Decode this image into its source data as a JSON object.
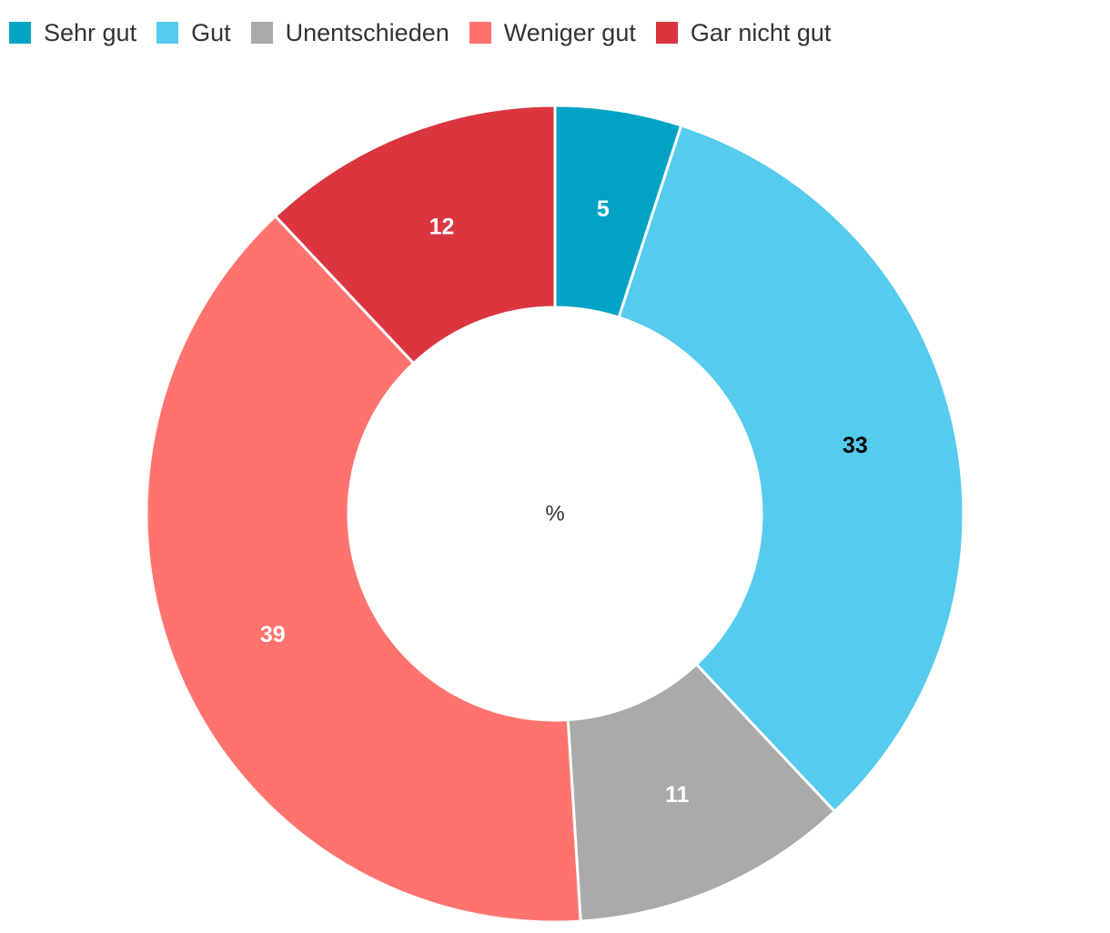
{
  "chart_data": {
    "type": "pie",
    "variant": "donut",
    "categories": [
      "Sehr gut",
      "Gut",
      "Unentschieden",
      "Weniger gut",
      "Gar nicht gut"
    ],
    "values": [
      5,
      33,
      11,
      39,
      12
    ],
    "colors": [
      "#00a3c4",
      "#55cbed",
      "#aaaaaa",
      "#ff736e",
      "#db3640"
    ],
    "label_colors": [
      "#ffffff",
      "#000000",
      "#ffffff",
      "#ffffff",
      "#ffffff"
    ],
    "center_label": "%",
    "legend_position": "top-left"
  }
}
